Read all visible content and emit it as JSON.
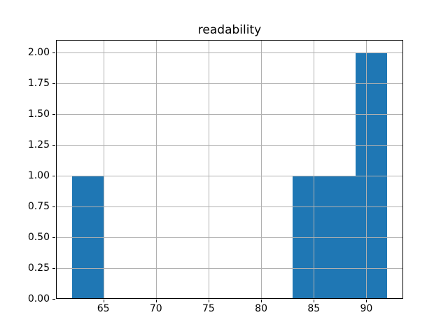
{
  "chart_data": {
    "type": "bar",
    "subtype": "histogram",
    "title": "readability",
    "xlabel": "",
    "ylabel": "",
    "xlim": [
      60.5,
      93.5
    ],
    "ylim": [
      0,
      2.1
    ],
    "grid": true,
    "legend": false,
    "bar_color": "#1f77b4",
    "grid_color": "#b0b0b0",
    "spine_color": "#000000",
    "background_color": "#ffffff",
    "bins": [
      {
        "start": 62,
        "end": 65,
        "count": 1
      },
      {
        "start": 65,
        "end": 68,
        "count": 0
      },
      {
        "start": 68,
        "end": 71,
        "count": 0
      },
      {
        "start": 71,
        "end": 74,
        "count": 0
      },
      {
        "start": 74,
        "end": 77,
        "count": 0
      },
      {
        "start": 77,
        "end": 80,
        "count": 0
      },
      {
        "start": 80,
        "end": 83,
        "count": 0
      },
      {
        "start": 83,
        "end": 86,
        "count": 1
      },
      {
        "start": 86,
        "end": 89,
        "count": 1
      },
      {
        "start": 89,
        "end": 92,
        "count": 2
      }
    ],
    "x_ticks": [
      {
        "value": 65,
        "label": "65"
      },
      {
        "value": 70,
        "label": "70"
      },
      {
        "value": 75,
        "label": "75"
      },
      {
        "value": 80,
        "label": "80"
      },
      {
        "value": 85,
        "label": "85"
      },
      {
        "value": 90,
        "label": "90"
      }
    ],
    "y_ticks": [
      {
        "value": 0.0,
        "label": "0.00"
      },
      {
        "value": 0.25,
        "label": "0.25"
      },
      {
        "value": 0.5,
        "label": "0.50"
      },
      {
        "value": 0.75,
        "label": "0.75"
      },
      {
        "value": 1.0,
        "label": "1.00"
      },
      {
        "value": 1.25,
        "label": "1.25"
      },
      {
        "value": 1.5,
        "label": "1.50"
      },
      {
        "value": 1.75,
        "label": "1.75"
      },
      {
        "value": 2.0,
        "label": "2.00"
      }
    ]
  }
}
